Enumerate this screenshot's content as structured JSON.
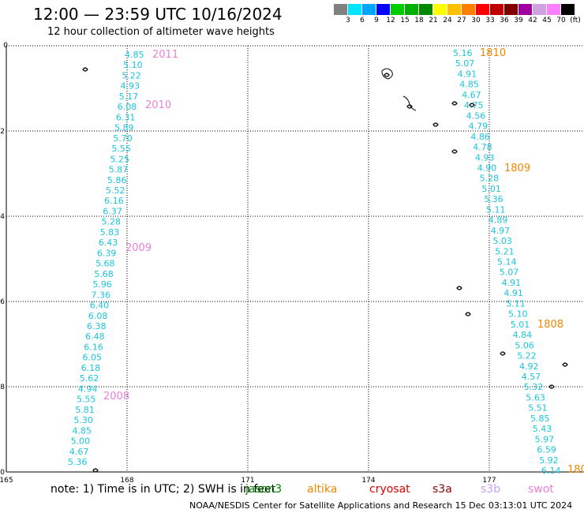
{
  "title": "12:00 — 23:59 UTC 10/16/2024",
  "subtitle": "12 hour collection of altimeter wave heights",
  "legend": {
    "colors": [
      "#808080",
      "#00e5ff",
      "#00a5ff",
      "#0000ff",
      "#00cc00",
      "#00b000",
      "#008800",
      "#ffff00",
      "#ffc000",
      "#ff8000",
      "#ff0000",
      "#c00000",
      "#800000",
      "#a000a0",
      "#d0a0e0",
      "#ff80ff",
      "#000000"
    ],
    "labels": [
      "3",
      "6",
      "9",
      "12",
      "15",
      "18",
      "21",
      "24",
      "27",
      "30",
      "33",
      "36",
      "39",
      "42",
      "45",
      "70",
      "(ft)"
    ]
  },
  "axes": {
    "x_ticks": [
      "165",
      "168",
      "171",
      "174",
      "177"
    ],
    "y_ticks": [
      "0",
      "-2",
      "-4",
      "-6",
      "-8",
      "-10"
    ],
    "lon_range": [
      165,
      180
    ],
    "lat_range": [
      -10,
      0
    ]
  },
  "tracks": [
    {
      "values": [
        "4.85",
        "5.10",
        "5.22",
        "4.93",
        "5.17",
        "6.08",
        "6.31",
        "5.89",
        "5.70",
        "5.55",
        "5.25",
        "5.87",
        "5.86",
        "5.52",
        "6.16",
        "6.37",
        "5.28",
        "5.83",
        "6.43",
        "6.39",
        "5.68",
        "5.68",
        "5.96",
        "7.36",
        "6.40",
        "6.08",
        "6.38",
        "6.48",
        "6.16",
        "6.05",
        "6.18",
        "5.62",
        "4.94",
        "5.55",
        "5.81",
        "5.30",
        "4.85",
        "5.00",
        "4.67",
        "5.36"
      ]
    },
    {
      "values": [
        "5.16",
        "5.07",
        "4.91",
        "4.85",
        "4.67",
        "4.75",
        "4.56",
        "4.79",
        "4.86",
        "4.78",
        "4.93",
        "4.90",
        "5.28",
        "5.01",
        "5.36",
        "5.11",
        "4.89",
        "4.97",
        "5.03",
        "5.21",
        "5.14",
        "5.07",
        "4.91",
        "4.91",
        "5.11",
        "5.10",
        "5.01",
        "4.84",
        "5.06",
        "5.22",
        "4.92",
        "4.57",
        "5.32",
        "5.63",
        "5.51",
        "5.85",
        "5.43",
        "5.97",
        "6.59",
        "5.92",
        "6.14"
      ]
    }
  ],
  "time_labels": [
    {
      "text": "2011",
      "color": "pink"
    },
    {
      "text": "2010",
      "color": "pink"
    },
    {
      "text": "2009",
      "color": "pink"
    },
    {
      "text": "2008",
      "color": "pink"
    },
    {
      "text": "1810",
      "color": "orange"
    },
    {
      "text": "1809",
      "color": "orange"
    },
    {
      "text": "1808",
      "color": "orange"
    },
    {
      "text": "180",
      "color": "orange"
    }
  ],
  "note": "note: 1) Time is in UTC; 2) SWH is in feet",
  "satellites": [
    {
      "name": "jason3",
      "color": "#008800"
    },
    {
      "name": "altika",
      "color": "#f08800"
    },
    {
      "name": "cryosat",
      "color": "#e00000"
    },
    {
      "name": "s3a",
      "color": "#8b0000"
    },
    {
      "name": "s3b",
      "color": "#c8a0ec"
    },
    {
      "name": "swot",
      "color": "#ea7fd6"
    }
  ],
  "credit": "NOAA/NESDIS Center for Satellite Applications and Research    15 Dec 03:13:01 UTC 2024"
}
